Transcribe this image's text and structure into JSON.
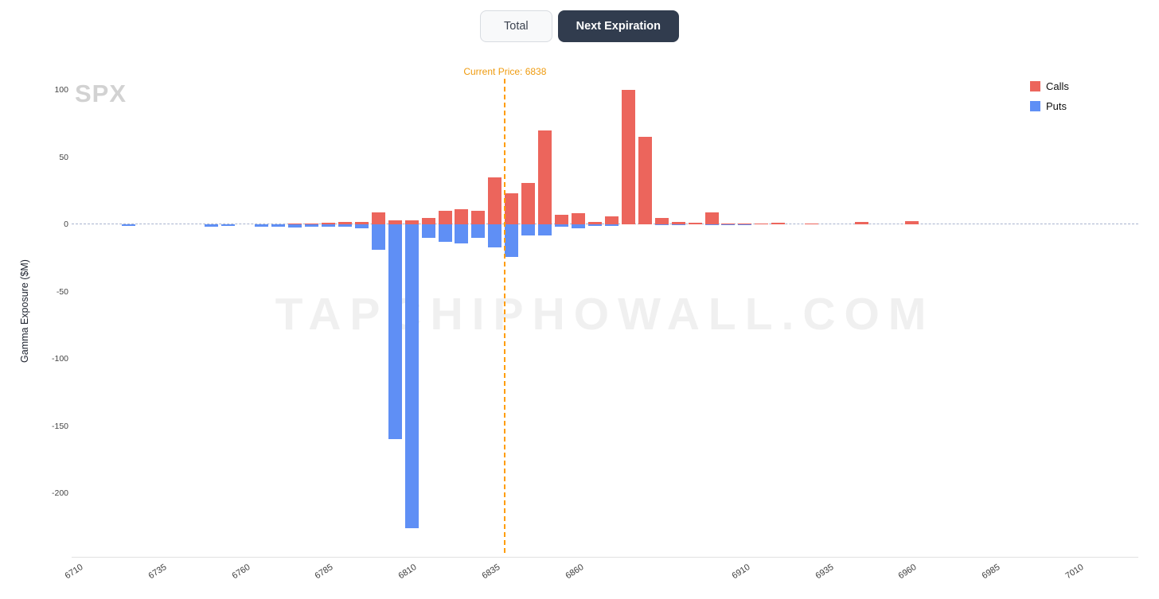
{
  "toolbar": {
    "total_label": "Total",
    "next_expiration_label": "Next Expiration"
  },
  "chart_data": {
    "type": "bar",
    "title": "SPX",
    "ylabel": "Gamma Exposure ($M)",
    "watermark": "TAPCHIPHOWALL.COM",
    "current_price": 6838,
    "current_price_label": "Current Price: 6838",
    "current_price_color": "#ff9d00",
    "legend_position": "top-right",
    "grid": false,
    "x_range": [
      6708,
      7028
    ],
    "y_range": [
      -247,
      108
    ],
    "x_ticks": [
      6710,
      6735,
      6760,
      6785,
      6810,
      6835,
      6860,
      6910,
      6935,
      6960,
      6985,
      7010
    ],
    "y_ticks": [
      100,
      50,
      0,
      -50,
      -100,
      -150,
      -200
    ],
    "legend": [
      {
        "label": "Calls",
        "color": "#EC655C"
      },
      {
        "label": "Puts",
        "color": "#5F8FF5"
      }
    ],
    "strikes": [
      {
        "strike": 6725,
        "call": 0,
        "put": -1
      },
      {
        "strike": 6750,
        "call": 0,
        "put": -2
      },
      {
        "strike": 6755,
        "call": 0,
        "put": -1
      },
      {
        "strike": 6765,
        "call": 0,
        "put": -1.5
      },
      {
        "strike": 6770,
        "call": 0,
        "put": -2
      },
      {
        "strike": 6775,
        "call": 0.5,
        "put": -2.5
      },
      {
        "strike": 6780,
        "call": 0.5,
        "put": -2
      },
      {
        "strike": 6785,
        "call": 1,
        "put": -1.5
      },
      {
        "strike": 6790,
        "call": 2,
        "put": -2
      },
      {
        "strike": 6795,
        "call": 2,
        "put": -3
      },
      {
        "strike": 6800,
        "call": 9,
        "put": -19
      },
      {
        "strike": 6805,
        "call": 3,
        "put": -160
      },
      {
        "strike": 6810,
        "call": 3,
        "put": -226
      },
      {
        "strike": 6815,
        "call": 5,
        "put": -10
      },
      {
        "strike": 6820,
        "call": 10,
        "put": -13
      },
      {
        "strike": 6825,
        "call": 11,
        "put": -14
      },
      {
        "strike": 6830,
        "call": 10,
        "put": -10
      },
      {
        "strike": 6835,
        "call": 35,
        "put": -17
      },
      {
        "strike": 6840,
        "call": 23,
        "put": -24
      },
      {
        "strike": 6845,
        "call": 31,
        "put": -8
      },
      {
        "strike": 6850,
        "call": 70,
        "put": -8
      },
      {
        "strike": 6855,
        "call": 7,
        "put": -2
      },
      {
        "strike": 6860,
        "call": 8,
        "put": -3
      },
      {
        "strike": 6865,
        "call": 2,
        "put": -1
      },
      {
        "strike": 6870,
        "call": 6,
        "put": -1
      },
      {
        "strike": 6875,
        "call": 100,
        "put": 0
      },
      {
        "strike": 6880,
        "call": 65,
        "put": 0
      },
      {
        "strike": 6885,
        "call": 5,
        "put": -0.5
      },
      {
        "strike": 6890,
        "call": 2,
        "put": -0.5
      },
      {
        "strike": 6895,
        "call": 1,
        "put": 0
      },
      {
        "strike": 6900,
        "call": 9,
        "put": -0.5
      },
      {
        "strike": 6905,
        "call": 0.5,
        "put": -0.5
      },
      {
        "strike": 6910,
        "call": 0.5,
        "put": -0.5
      },
      {
        "strike": 6915,
        "call": 0.5,
        "put": 0
      },
      {
        "strike": 6920,
        "call": 1,
        "put": 0
      },
      {
        "strike": 6930,
        "call": 0.5,
        "put": 0
      },
      {
        "strike": 6945,
        "call": 1.5,
        "put": 0
      },
      {
        "strike": 6960,
        "call": 2.5,
        "put": 0
      }
    ]
  }
}
